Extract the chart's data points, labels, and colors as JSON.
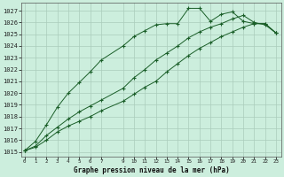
{
  "title": "Graphe pression niveau de la mer (hPa)",
  "background_color": "#cceedd",
  "grid_color": "#aaccbb",
  "line_color": "#1a5e28",
  "x_ticks": [
    0,
    1,
    2,
    3,
    4,
    5,
    6,
    7,
    9,
    10,
    11,
    12,
    13,
    14,
    15,
    16,
    17,
    18,
    19,
    20,
    21,
    22,
    23
  ],
  "yticks": [
    1015,
    1016,
    1017,
    1018,
    1019,
    1020,
    1021,
    1022,
    1023,
    1024,
    1025,
    1026,
    1027
  ],
  "ylim_low": 1014.6,
  "ylim_high": 1027.7,
  "xlim_low": -0.3,
  "xlim_high": 23.5,
  "series1_x": [
    0,
    1,
    2,
    3,
    4,
    5,
    6,
    7,
    9,
    10,
    11,
    12,
    13,
    14,
    15,
    16,
    17,
    18,
    19,
    20,
    21,
    22,
    23
  ],
  "series1_y": [
    1015.1,
    1015.4,
    1016.0,
    1016.7,
    1017.2,
    1017.6,
    1018.0,
    1018.5,
    1019.3,
    1019.9,
    1020.5,
    1021.0,
    1021.8,
    1022.5,
    1023.2,
    1023.8,
    1024.3,
    1024.8,
    1025.2,
    1025.6,
    1025.9,
    1025.9,
    1025.1
  ],
  "series2_x": [
    0,
    1,
    2,
    3,
    4,
    5,
    6,
    7,
    9,
    10,
    11,
    12,
    13,
    14,
    15,
    16,
    17,
    18,
    19,
    20,
    21,
    22,
    23
  ],
  "series2_y": [
    1015.1,
    1015.5,
    1016.4,
    1017.1,
    1017.8,
    1018.4,
    1018.9,
    1019.4,
    1020.4,
    1021.3,
    1022.0,
    1022.8,
    1023.4,
    1024.0,
    1024.7,
    1025.2,
    1025.6,
    1025.9,
    1026.3,
    1026.6,
    1026.0,
    1025.8,
    1025.1
  ],
  "series3_x": [
    0,
    1,
    2,
    3,
    4,
    5,
    6,
    7,
    9,
    10,
    11,
    12,
    13,
    14,
    15,
    16,
    17,
    18,
    19,
    20,
    21,
    22,
    23
  ],
  "series3_y": [
    1015.1,
    1015.9,
    1017.3,
    1018.8,
    1020.0,
    1020.9,
    1021.8,
    1022.8,
    1024.0,
    1024.8,
    1025.3,
    1025.8,
    1025.9,
    1025.9,
    1027.2,
    1027.2,
    1026.1,
    1026.7,
    1026.9,
    1026.1,
    1025.9,
    1025.9,
    1025.1
  ]
}
